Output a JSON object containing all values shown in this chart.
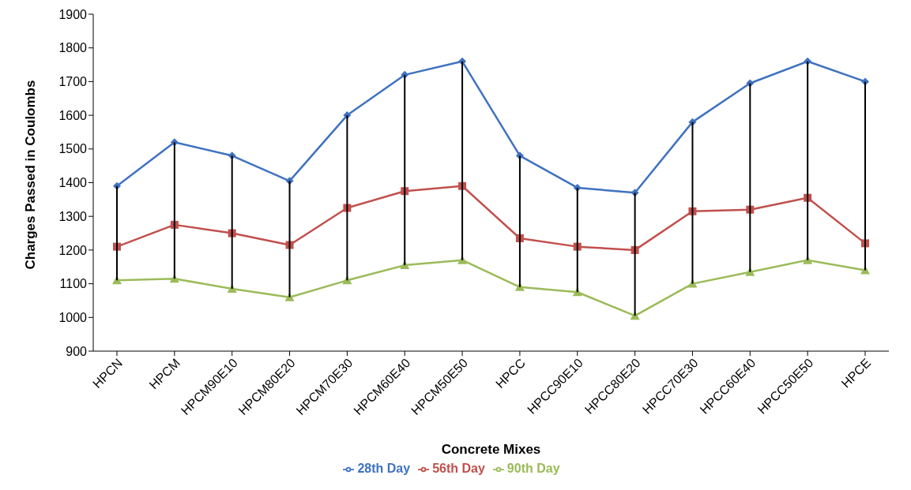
{
  "chart_data": {
    "type": "line",
    "xlabel": "Concrete Mixes",
    "ylabel": "Charges Passed in Coulombs",
    "categories": [
      "HPCN",
      "HPCM",
      "HPCM90E10",
      "HPCM80E20",
      "HPCM70E30",
      "HPCM60E40",
      "HPCM50E50",
      "HPCC",
      "HPCC90E10",
      "HPCC80E20",
      "HPCC70E30",
      "HPCC60E40",
      "HPCC50E50",
      "HPCE"
    ],
    "series": [
      {
        "name": "28th Day",
        "color": "#3f72c0",
        "marker": "diamond",
        "values": [
          1390,
          1520,
          1480,
          1405,
          1600,
          1720,
          1760,
          1480,
          1385,
          1370,
          1580,
          1695,
          1760,
          1700
        ]
      },
      {
        "name": "56th Day",
        "color": "#c0504d",
        "marker": "square",
        "values": [
          1210,
          1275,
          1250,
          1215,
          1325,
          1375,
          1390,
          1235,
          1210,
          1200,
          1315,
          1320,
          1355,
          1220
        ]
      },
      {
        "name": "90th Day",
        "color": "#9bbb59",
        "marker": "triangle",
        "values": [
          1110,
          1115,
          1085,
          1060,
          1110,
          1155,
          1170,
          1090,
          1075,
          1005,
          1100,
          1135,
          1170,
          1140
        ],
        "errors": [
          [
            1110,
            1390
          ],
          [
            1115,
            1520
          ],
          [
            1085,
            1480
          ],
          [
            1060,
            1405
          ],
          [
            1110,
            1600
          ],
          [
            1155,
            1720
          ],
          [
            1170,
            1760
          ],
          [
            1090,
            1480
          ],
          [
            1075,
            1385
          ],
          [
            1005,
            1370
          ],
          [
            1100,
            1580
          ],
          [
            1135,
            1695
          ],
          [
            1170,
            1760
          ],
          [
            1140,
            1700
          ]
        ]
      }
    ],
    "ylim": [
      900,
      1900
    ],
    "yticks": [
      900,
      1000,
      1100,
      1200,
      1300,
      1400,
      1500,
      1600,
      1700,
      1800,
      1900
    ],
    "grid": false,
    "legend": "bottom"
  }
}
